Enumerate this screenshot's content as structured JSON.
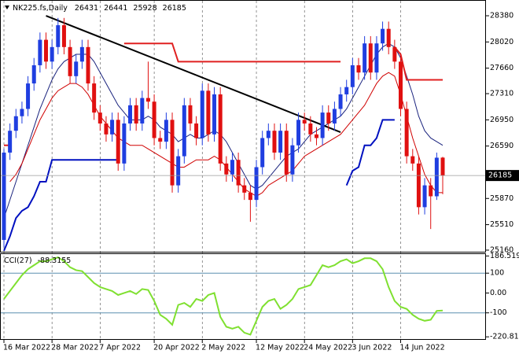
{
  "chart_data": {
    "type": "candlestick",
    "title": "NK225.fs,Daily",
    "categories": [
      "16 Mar 2022",
      null,
      null,
      null,
      null,
      null,
      null,
      null,
      "28 Mar 2022",
      null,
      null,
      null,
      null,
      null,
      null,
      null,
      "7 Apr 2022",
      null,
      null,
      null,
      null,
      null,
      null,
      null,
      null,
      "20 Apr 2022",
      null,
      null,
      null,
      null,
      null,
      null,
      null,
      "2 May 2022",
      null,
      null,
      null,
      null,
      null,
      null,
      null,
      null,
      "12 May 2022",
      null,
      null,
      null,
      null,
      null,
      null,
      null,
      "24 May 2022",
      null,
      null,
      null,
      null,
      null,
      null,
      null,
      "3 Jun 2022",
      null,
      null,
      null,
      null,
      null,
      null,
      null,
      "14 Jun 2022",
      null,
      null,
      null,
      null,
      null,
      null,
      null
    ],
    "open": [
      25300,
      26500,
      26800,
      27000,
      27100,
      27450,
      27700,
      28050,
      27750,
      27950,
      28250,
      27950,
      27550,
      27750,
      27950,
      27450,
      27050,
      26900,
      26750,
      26950,
      26350,
      26900,
      27150,
      26900,
      27250,
      27200,
      26700,
      26650,
      26950,
      26050,
      26450,
      27150,
      26900,
      26700,
      27350,
      26750,
      27300,
      26350,
      26200,
      26400,
      26050,
      25950,
      25850,
      26300,
      26700,
      26800,
      26500,
      26800,
      26200,
      26600,
      26950,
      26900,
      26750,
      26700,
      27050,
      26900,
      27100,
      27300,
      27400,
      27700,
      27600,
      28000,
      27600,
      28000,
      28200,
      27950,
      27750,
      27100,
      26450,
      26350,
      25750,
      26050,
      25900,
      26431
    ],
    "high": [
      26550,
      26900,
      27100,
      27200,
      27550,
      27800,
      28150,
      28150,
      28050,
      28350,
      28350,
      28050,
      27850,
      28050,
      28050,
      27550,
      27150,
      27000,
      27050,
      27050,
      27000,
      27250,
      27250,
      27350,
      27750,
      27300,
      26800,
      27050,
      27050,
      26550,
      27250,
      27250,
      27000,
      27450,
      27450,
      27400,
      27400,
      26450,
      26500,
      26500,
      26150,
      26050,
      26400,
      26800,
      26900,
      26900,
      26900,
      26900,
      26700,
      27050,
      27050,
      27000,
      26850,
      27150,
      27150,
      27200,
      27400,
      27500,
      27800,
      27800,
      28100,
      28100,
      28100,
      28300,
      28300,
      28050,
      27850,
      27200,
      26550,
      26450,
      26150,
      26150,
      26500,
      26441
    ],
    "low": [
      25200,
      26400,
      26700,
      26900,
      27000,
      27350,
      27600,
      27650,
      27650,
      27850,
      27850,
      27450,
      27450,
      27650,
      27350,
      26950,
      26800,
      26650,
      26650,
      26250,
      26250,
      26800,
      26800,
      26800,
      27100,
      26600,
      26550,
      26550,
      25950,
      25950,
      26350,
      26800,
      26600,
      26600,
      26650,
      26650,
      26250,
      26100,
      26100,
      25950,
      25850,
      25550,
      25750,
      26200,
      26600,
      26400,
      26400,
      26100,
      26100,
      26500,
      26800,
      26650,
      26600,
      26600,
      26800,
      26800,
      27000,
      27200,
      27300,
      27500,
      27500,
      27500,
      27500,
      27900,
      27850,
      27650,
      27000,
      26350,
      26250,
      25650,
      25650,
      25450,
      25850,
      25928
    ],
    "close": [
      26500,
      26800,
      27000,
      27100,
      27450,
      27700,
      28050,
      27750,
      27950,
      28250,
      27950,
      27550,
      27750,
      27950,
      27450,
      27050,
      26900,
      26750,
      26950,
      26350,
      26900,
      27150,
      26900,
      27250,
      27200,
      26700,
      26650,
      26950,
      26050,
      26450,
      27150,
      26900,
      26700,
      27350,
      26750,
      27300,
      26350,
      26200,
      26400,
      26050,
      25950,
      25850,
      26300,
      26700,
      26800,
      26500,
      26800,
      26200,
      26600,
      26950,
      26900,
      26750,
      26700,
      27050,
      26900,
      27100,
      27300,
      27400,
      27700,
      27600,
      28000,
      27600,
      28000,
      28200,
      27950,
      27750,
      27100,
      26450,
      26350,
      25750,
      26050,
      25900,
      26430,
      26185
    ],
    "up_color": "#1f3ee0",
    "down_color": "#e01010",
    "series": [
      {
        "color": "#1a237e",
        "width": 1,
        "values": [
          25600,
          25850,
          26100,
          26350,
          26600,
          26850,
          27100,
          27300,
          27500,
          27650,
          27750,
          27800,
          27850,
          27850,
          27850,
          27750,
          27600,
          27450,
          27300,
          27150,
          27050,
          26950,
          26950,
          26950,
          27000,
          26950,
          26850,
          26800,
          26750,
          26650,
          26700,
          26750,
          26700,
          26700,
          26750,
          26800,
          26750,
          26650,
          26500,
          26350,
          26200,
          26050,
          26000,
          26050,
          26150,
          26250,
          26350,
          26450,
          26500,
          26550,
          26650,
          26750,
          26800,
          26850,
          26900,
          26950,
          27000,
          27100,
          27250,
          27400,
          27550,
          27700,
          27850,
          27950,
          28000,
          27950,
          27800,
          27550,
          27300,
          27000,
          26800,
          26700,
          26650,
          26600
        ]
      },
      {
        "color": "#d00000",
        "width": 1,
        "values": [
          null,
          26100,
          26200,
          26350,
          26550,
          26750,
          26950,
          27100,
          27250,
          27350,
          27400,
          27450,
          27450,
          27400,
          27300,
          27150,
          27000,
          26900,
          26800,
          26700,
          26650,
          26600,
          26600,
          26600,
          26550,
          26500,
          26450,
          26400,
          26350,
          26300,
          26300,
          26350,
          26400,
          26400,
          26400,
          26450,
          26400,
          26300,
          26200,
          26100,
          26000,
          25950,
          25900,
          25950,
          26050,
          26100,
          26150,
          26200,
          26250,
          26350,
          26450,
          26500,
          26550,
          26600,
          26650,
          26700,
          26750,
          26850,
          26950,
          27050,
          27150,
          27300,
          27450,
          27550,
          27600,
          27550,
          27300,
          27000,
          26700,
          26450,
          26200,
          26050,
          25950,
          25950
        ]
      },
      {
        "color": "#0010c0",
        "width": 2,
        "values": [
          25150,
          25350,
          25600,
          25700,
          25750,
          25900,
          26100,
          26100,
          26400,
          26400,
          26400,
          26400,
          26400,
          26400,
          26400,
          26400,
          26400,
          26400,
          26400,
          26400,
          null,
          null,
          null,
          null,
          null,
          null,
          null,
          null,
          null,
          null,
          null,
          null,
          null,
          null,
          null,
          null,
          null,
          null,
          null,
          null,
          null,
          null,
          null,
          null,
          null,
          null,
          null,
          null,
          null,
          null,
          null,
          null,
          null,
          null,
          null,
          null,
          null,
          26050,
          26250,
          26300,
          26600,
          26600,
          26700,
          26950,
          26950,
          26950,
          null,
          null,
          null,
          null,
          null,
          null,
          null,
          null
        ]
      },
      {
        "color": "#e02020",
        "width": 2,
        "values": [
          26600,
          26600,
          null,
          null,
          null,
          null,
          null,
          null,
          null,
          null,
          null,
          null,
          null,
          null,
          null,
          null,
          null,
          null,
          null,
          null,
          28000,
          28000,
          28000,
          28000,
          28000,
          28000,
          28000,
          28000,
          28000,
          27750,
          27750,
          27750,
          27750,
          27750,
          27750,
          27750,
          27750,
          27750,
          27750,
          27750,
          27750,
          27750,
          27750,
          27750,
          27750,
          27750,
          27750,
          27750,
          27750,
          27750,
          27750,
          27750,
          27750,
          27750,
          27750,
          27750,
          27750,
          null,
          null,
          null,
          null,
          null,
          null,
          null,
          null,
          27950,
          27850,
          27500,
          27500,
          27500,
          27500,
          27500,
          27500,
          27500
        ]
      }
    ],
    "trendline": {
      "color": "#000000",
      "x": [
        7,
        56
      ],
      "y": [
        28380,
        26780
      ]
    },
    "ylim": [
      25138,
      28564
    ],
    "yticks": [
      28380,
      28020,
      27660,
      27310,
      26950,
      26590,
      25870,
      25510,
      25160
    ],
    "cci": {
      "title": "CCI(27)",
      "color": "#7fe030",
      "values": [
        -30,
        10,
        50,
        90,
        120,
        140,
        160,
        160,
        170,
        180,
        160,
        130,
        115,
        110,
        80,
        50,
        30,
        20,
        10,
        -10,
        0,
        10,
        -5,
        20,
        15,
        -40,
        -110,
        -130,
        -160,
        -60,
        -50,
        -70,
        -30,
        -40,
        -10,
        0,
        -120,
        -170,
        -180,
        -170,
        -200,
        -210,
        -140,
        -70,
        -40,
        -30,
        -80,
        -60,
        -30,
        20,
        30,
        40,
        90,
        140,
        130,
        140,
        160,
        170,
        150,
        160,
        175,
        175,
        160,
        120,
        30,
        -40,
        -70,
        -80,
        -110,
        -130,
        -140,
        -135,
        -90,
        -88.3155
      ],
      "ylim": [
        -232,
        196
      ],
      "yticks": [
        186.5198,
        100,
        {
          "value": 0,
          "label": "0.00"
        },
        -100,
        -220.811
      ],
      "levels": [
        100,
        -100
      ],
      "level_color": "#5b8fb0"
    }
  }
}
